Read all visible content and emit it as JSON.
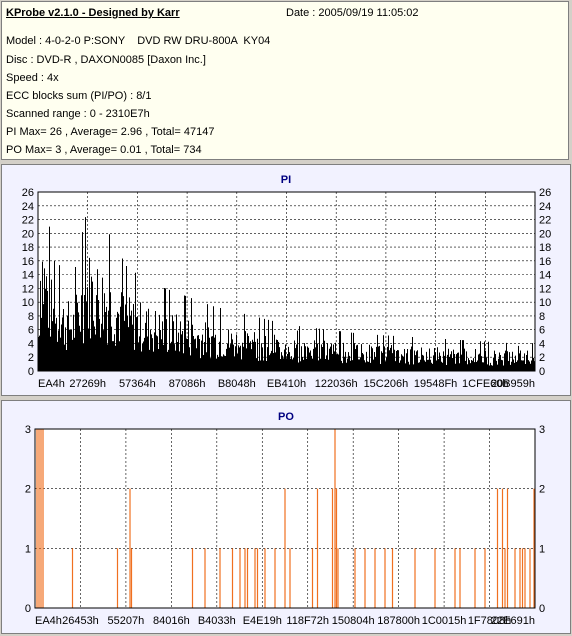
{
  "header": {
    "title": "KProbe v2.1.0 - Designed by Karr",
    "date": "Date : 2005/09/19 11:05:02",
    "lines": [
      "Model : 4-0-2-0 P:SONY    DVD RW DRU-800A  KY04",
      "Disc : DVD-R , DAXON0085 [Daxon Inc.]",
      "Speed : 4x",
      "ECC blocks sum (PI/PO) : 8/1",
      "Scanned range : 0 - 2310E7h",
      "PI Max= 26 , Average= 2.96 , Total= 47147",
      "PO Max= 3 , Average= 0.01 , Total= 734"
    ]
  },
  "chart_data": [
    {
      "type": "bar",
      "title": "PI",
      "ylim": [
        0,
        26
      ],
      "yticks": [
        0,
        2,
        4,
        6,
        8,
        10,
        12,
        14,
        16,
        18,
        20,
        22,
        24,
        26
      ],
      "xticks": [
        "EA4h",
        "27269h",
        "57364h",
        "87086h",
        "B8048h",
        "EB410h",
        "122036h",
        "15C206h",
        "19548Fh",
        "1CFE60h",
        "20B959h"
      ],
      "grid": true,
      "color": "#000000",
      "profile": [
        [
          0,
          8
        ],
        [
          0.005,
          26
        ],
        [
          0.01,
          21
        ],
        [
          0.03,
          12
        ],
        [
          0.07,
          10
        ],
        [
          0.1,
          18
        ],
        [
          0.13,
          16
        ],
        [
          0.18,
          11
        ],
        [
          0.25,
          9
        ],
        [
          0.35,
          7
        ],
        [
          0.5,
          5
        ],
        [
          0.65,
          4
        ],
        [
          0.8,
          3.5
        ],
        [
          0.95,
          3
        ],
        [
          1.0,
          3
        ]
      ]
    },
    {
      "type": "bar",
      "title": "PO",
      "ylim": [
        0,
        3
      ],
      "yticks": [
        0,
        1,
        2,
        3
      ],
      "xticks": [
        "EA4h",
        "26453h",
        "55207h",
        "84016h",
        "B4033h",
        "E4E19h",
        "118F72h",
        "150804h",
        "187800h",
        "1C0015h",
        "1F7808h",
        "22E691h"
      ],
      "grid": true,
      "color": "#f07020",
      "bars": [
        [
          0.004,
          3
        ],
        [
          0.008,
          3
        ],
        [
          0.012,
          3
        ],
        [
          0.016,
          3
        ],
        [
          0.075,
          1
        ],
        [
          0.165,
          1
        ],
        [
          0.19,
          2
        ],
        [
          0.193,
          1
        ],
        [
          0.315,
          1
        ],
        [
          0.34,
          1
        ],
        [
          0.37,
          1
        ],
        [
          0.395,
          1
        ],
        [
          0.41,
          1
        ],
        [
          0.42,
          1
        ],
        [
          0.425,
          1
        ],
        [
          0.44,
          1
        ],
        [
          0.445,
          1
        ],
        [
          0.46,
          1
        ],
        [
          0.48,
          1
        ],
        [
          0.5,
          2
        ],
        [
          0.51,
          1
        ],
        [
          0.555,
          1
        ],
        [
          0.565,
          2
        ],
        [
          0.595,
          2
        ],
        [
          0.6,
          3
        ],
        [
          0.603,
          2
        ],
        [
          0.606,
          1
        ],
        [
          0.64,
          1
        ],
        [
          0.66,
          1
        ],
        [
          0.68,
          1
        ],
        [
          0.7,
          1
        ],
        [
          0.715,
          1
        ],
        [
          0.76,
          1
        ],
        [
          0.8,
          1
        ],
        [
          0.84,
          1
        ],
        [
          0.85,
          1
        ],
        [
          0.88,
          1
        ],
        [
          0.9,
          1
        ],
        [
          0.925,
          2
        ],
        [
          0.935,
          2
        ],
        [
          0.94,
          1
        ],
        [
          0.945,
          2
        ],
        [
          0.96,
          1
        ],
        [
          0.97,
          1
        ],
        [
          0.975,
          1
        ],
        [
          0.98,
          1
        ],
        [
          0.99,
          1
        ],
        [
          0.998,
          2
        ]
      ]
    }
  ]
}
